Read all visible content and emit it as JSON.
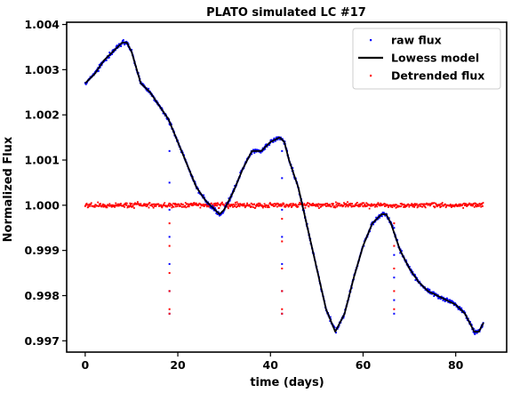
{
  "chart_data": {
    "type": "scatter",
    "title": "PLATO simulated LC #17",
    "xlabel": "time (days)",
    "ylabel": "Normalized Flux",
    "xlim": [
      -4,
      91
    ],
    "ylim": [
      0.99675,
      1.00405
    ],
    "grid": false,
    "legend_position": "top-right",
    "x_ticks": [
      0,
      20,
      40,
      60,
      80
    ],
    "x_tick_labels": [
      "0",
      "20",
      "40",
      "60",
      "80"
    ],
    "y_ticks": [
      0.997,
      0.998,
      0.999,
      1.0,
      1.001,
      1.002,
      1.003,
      1.004
    ],
    "y_tick_labels": [
      "0.997",
      "0.998",
      "0.999",
      "1.000",
      "1.001",
      "1.002",
      "1.003",
      "1.004"
    ],
    "series": [
      {
        "name": "raw flux",
        "kind": "points",
        "color": "#0000ff",
        "x": [
          0,
          2,
          4,
          6,
          8,
          9,
          10,
          12,
          14,
          16,
          18,
          20,
          22,
          24,
          26,
          28,
          29,
          30,
          32,
          34,
          36,
          38,
          40,
          42,
          43,
          44,
          46,
          48,
          50,
          52,
          54,
          56,
          58,
          60,
          62,
          64,
          65,
          66,
          68,
          70,
          72,
          74,
          76,
          78,
          80,
          82,
          84,
          85,
          86
        ],
        "y": [
          1.0027,
          1.0029,
          1.0032,
          1.0034,
          1.0036,
          1.0036,
          1.0034,
          1.0027,
          1.0025,
          1.0022,
          1.0019,
          1.0014,
          1.0009,
          1.0004,
          1.0001,
          0.9999,
          0.9998,
          0.9999,
          1.0003,
          1.0008,
          1.0012,
          1.0012,
          1.0014,
          1.0015,
          1.0014,
          1.001,
          1.0004,
          0.9995,
          0.9986,
          0.9977,
          0.9972,
          0.9976,
          0.9984,
          0.9991,
          0.9996,
          0.9998,
          0.9998,
          0.9996,
          0.999,
          0.9986,
          0.9983,
          0.9981,
          0.998,
          0.9979,
          0.9978,
          0.9976,
          0.9972,
          0.9972,
          0.9974
        ]
      },
      {
        "name": "Lowess model",
        "kind": "line",
        "color": "#000000",
        "x": [
          0,
          2,
          4,
          6,
          8,
          9,
          10,
          12,
          14,
          16,
          18,
          20,
          22,
          24,
          26,
          28,
          29,
          30,
          32,
          34,
          36,
          38,
          40,
          42,
          43,
          44,
          46,
          48,
          50,
          52,
          54,
          56,
          58,
          60,
          62,
          64,
          65,
          66,
          68,
          70,
          72,
          74,
          76,
          78,
          80,
          82,
          84,
          85,
          86
        ],
        "y": [
          1.0027,
          1.0029,
          1.0032,
          1.0034,
          1.0036,
          1.0036,
          1.0034,
          1.0027,
          1.0025,
          1.0022,
          1.0019,
          1.0014,
          1.0009,
          1.0004,
          1.0001,
          0.9999,
          0.9998,
          0.9999,
          1.0003,
          1.0008,
          1.0012,
          1.0012,
          1.0014,
          1.0015,
          1.0014,
          1.001,
          1.0004,
          0.9995,
          0.9986,
          0.9977,
          0.9972,
          0.9976,
          0.9984,
          0.9991,
          0.9996,
          0.9998,
          0.9998,
          0.9996,
          0.999,
          0.9986,
          0.9983,
          0.9981,
          0.998,
          0.9979,
          0.9978,
          0.9976,
          0.9972,
          0.9972,
          0.9974
        ]
      },
      {
        "name": "Detrended flux",
        "kind": "points",
        "color": "#ff0000",
        "x": [
          0,
          10,
          20,
          30,
          40,
          50,
          60,
          70,
          80,
          86
        ],
        "y": [
          1.0,
          1.0,
          1.0,
          1.0,
          1.0,
          1.0,
          1.0,
          1.0,
          1.0,
          1.0
        ]
      }
    ],
    "transit_dips": [
      {
        "x": 18.2,
        "raw_flux": [
          1.0018,
          1.0012,
          1.0005,
          0.9999,
          0.9993,
          0.9987,
          0.9981,
          0.9976
        ],
        "detrended_flux": [
          0.9996,
          0.9991,
          0.9985,
          0.9981,
          0.9977,
          0.9976
        ]
      },
      {
        "x": 42.5,
        "raw_flux": [
          1.0012,
          1.0006,
          0.9999,
          0.9993,
          0.9987,
          0.9981,
          0.9976
        ],
        "detrended_flux": [
          0.9997,
          0.9992,
          0.9986,
          0.9981,
          0.9977,
          0.9976
        ]
      },
      {
        "x": 66.7,
        "raw_flux": [
          0.9995,
          0.9989,
          0.9984,
          0.9979,
          0.9976
        ],
        "detrended_flux": [
          0.9996,
          0.9991,
          0.9986,
          0.9981,
          0.9977
        ]
      }
    ],
    "scatter_noise": {
      "raw_flux": 4e-05,
      "detrended_flux": 4.5e-05
    }
  }
}
